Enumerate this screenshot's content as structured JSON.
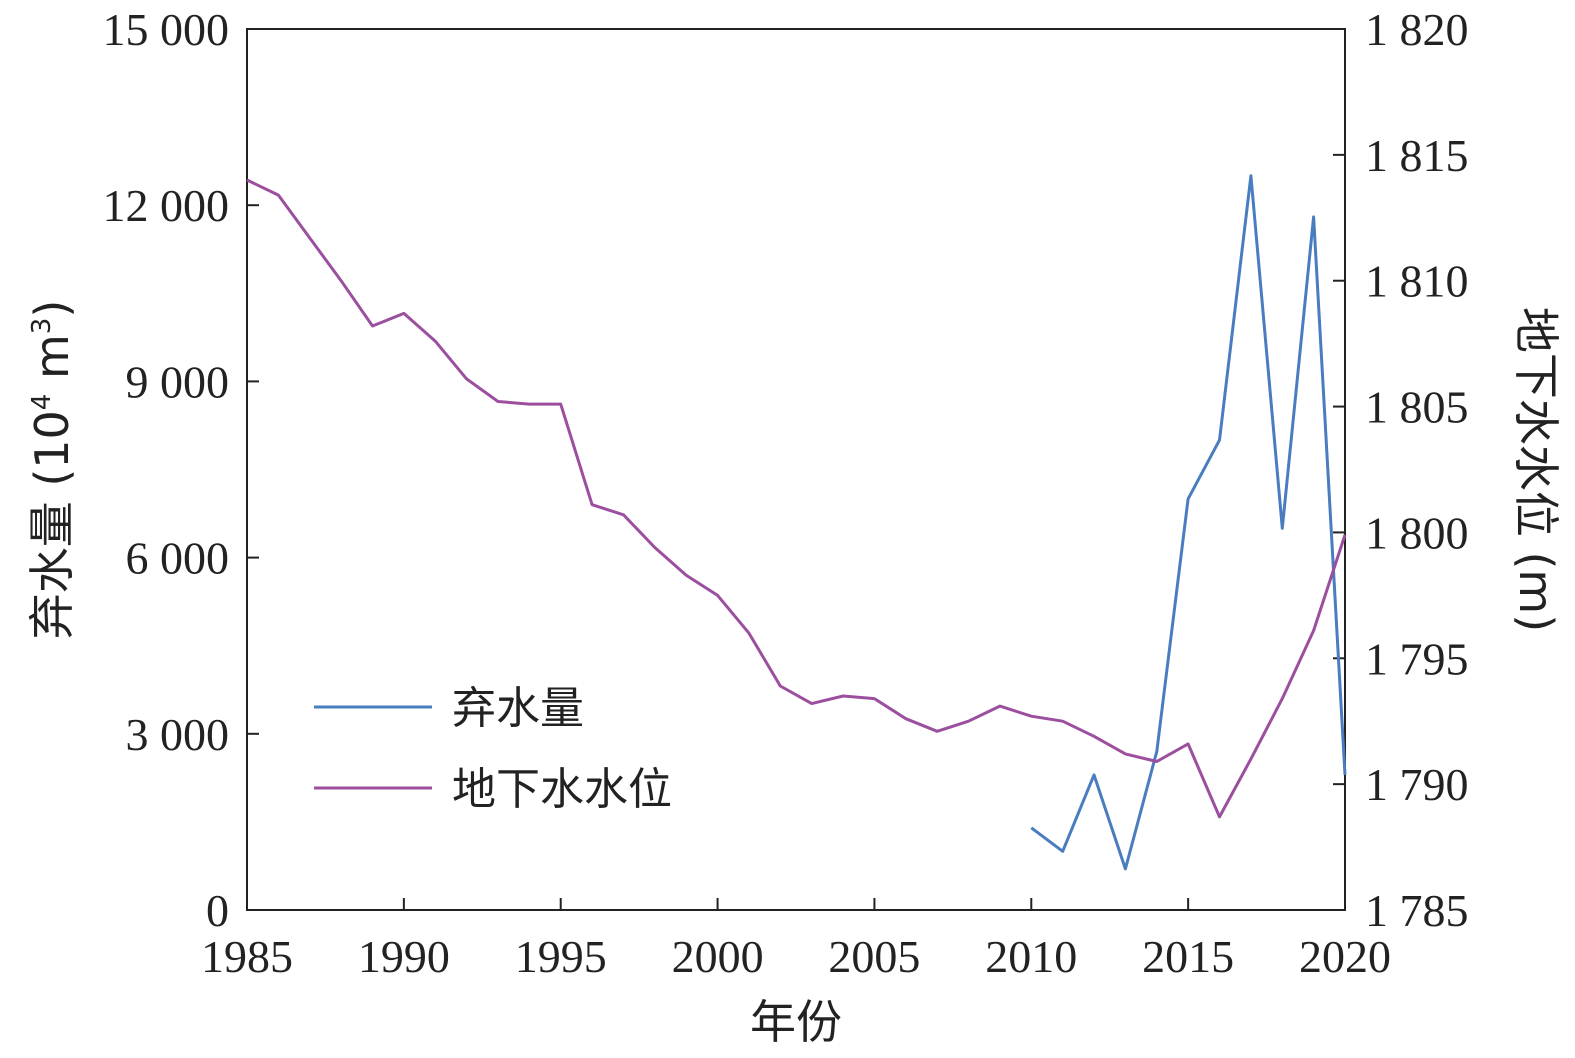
{
  "chart_data": {
    "type": "line",
    "title": "",
    "xlabel": "年份",
    "ylabel_left": {
      "main": "弃水量 (10",
      "sup": "4",
      "mid": " m",
      "sup2": "3",
      "end": ")"
    },
    "ylabel_right": "地下水水位 (m)",
    "xlim": [
      1985,
      2020
    ],
    "ylim_left": [
      0,
      15000
    ],
    "ylim_right": [
      1785,
      1820
    ],
    "x_ticks": [
      1985,
      1990,
      1995,
      2000,
      2005,
      2010,
      2015,
      2020
    ],
    "x_tick_labels": [
      "1985",
      "1990",
      "1995",
      "2000",
      "2005",
      "2010",
      "2015",
      "2020"
    ],
    "y_left_ticks": [
      0,
      3000,
      6000,
      9000,
      12000,
      15000
    ],
    "y_left_tick_labels": [
      "0",
      "3 000",
      "6 000",
      "9 000",
      "12 000",
      "15 000"
    ],
    "y_right_ticks": [
      1785,
      1790,
      1795,
      1800,
      1805,
      1810,
      1815,
      1820
    ],
    "y_right_tick_labels": [
      "1 785",
      "1 790",
      "1 795",
      "1 800",
      "1 805",
      "1 810",
      "1 815",
      "1 820"
    ],
    "grid": false,
    "legend_position": "bottom-left",
    "series": [
      {
        "name": "弃水量",
        "axis": "left",
        "color": "#4a7cc0",
        "x": [
          2010,
          2011,
          2012,
          2013,
          2014,
          2015,
          2016,
          2017,
          2018,
          2019,
          2020
        ],
        "values": [
          1400,
          1000,
          2300,
          700,
          2700,
          7000,
          8000,
          12500,
          6500,
          11800,
          2300
        ]
      },
      {
        "name": "地下水水位",
        "axis": "right",
        "color": "#9b4f9e",
        "x": [
          1985,
          1986,
          1987,
          1988,
          1989,
          1990,
          1991,
          1992,
          1993,
          1994,
          1995,
          1996,
          1997,
          1998,
          1999,
          2000,
          2001,
          2002,
          2003,
          2004,
          2005,
          2006,
          2007,
          2008,
          2009,
          2010,
          2011,
          2012,
          2013,
          2014,
          2015,
          2016,
          2017,
          2018,
          2019,
          2020
        ],
        "values": [
          1814,
          1813.4,
          1811.7,
          1810,
          1808.2,
          1808.7,
          1807.6,
          1806.1,
          1805.2,
          1805.1,
          1805.1,
          1801.1,
          1800.7,
          1799.4,
          1798.3,
          1797.5,
          1796,
          1793.9,
          1793.2,
          1793.5,
          1793.4,
          1792.6,
          1792.1,
          1792.5,
          1793.1,
          1792.7,
          1792.5,
          1791.9,
          1791.2,
          1790.9,
          1791.6,
          1788.7,
          1791,
          1793.4,
          1796.1,
          1799.9
        ]
      }
    ]
  }
}
